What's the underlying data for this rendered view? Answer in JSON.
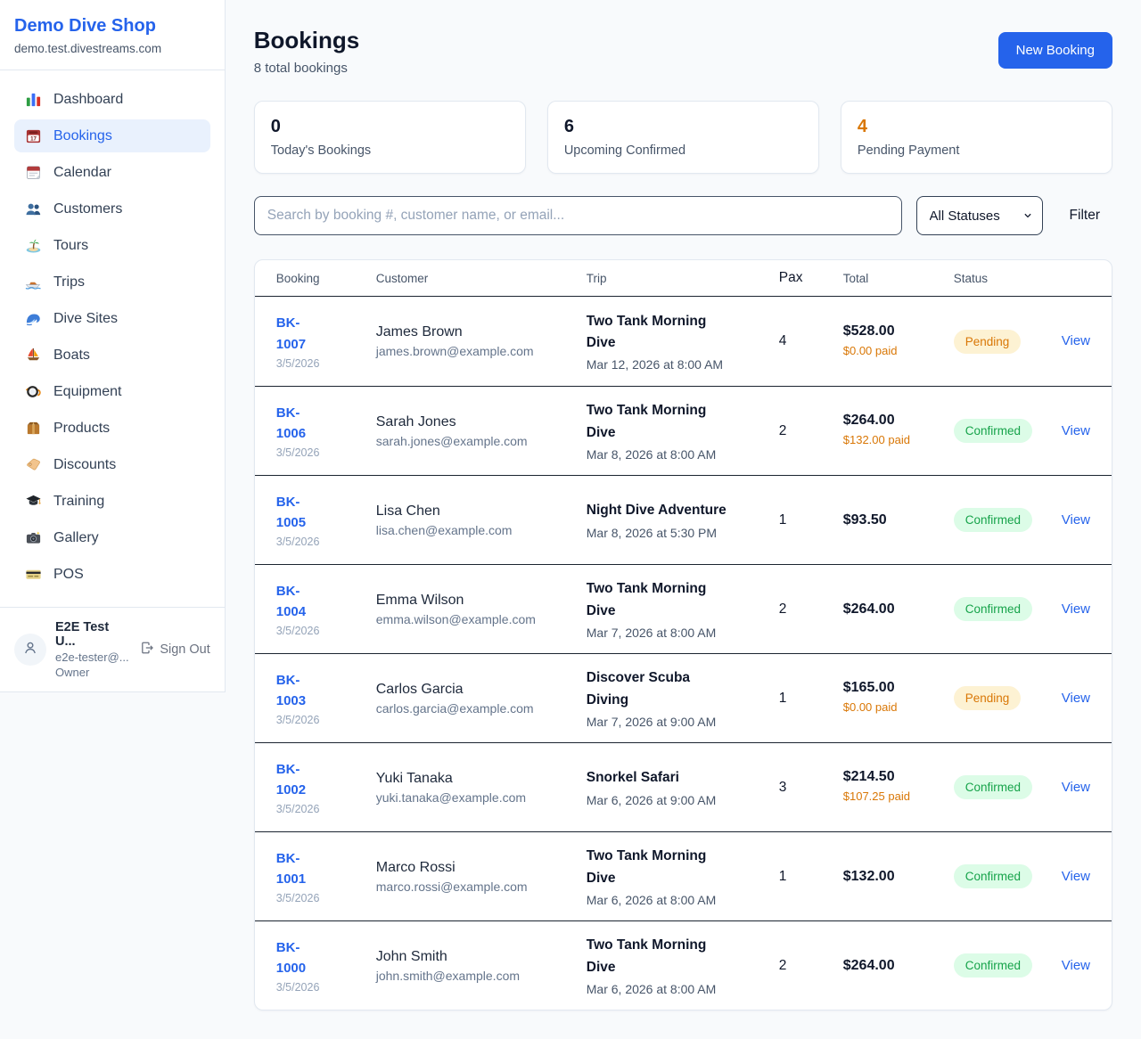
{
  "brand": {
    "name": "Demo Dive Shop",
    "domain": "demo.test.divestreams.com"
  },
  "sidebar": {
    "items": [
      {
        "icon": "bar-chart-icon",
        "label": "Dashboard",
        "state": ""
      },
      {
        "icon": "bookings-calendar-icon",
        "label": "Bookings",
        "state": "active"
      },
      {
        "icon": "calendar-icon",
        "label": "Calendar",
        "state": ""
      },
      {
        "icon": "customers-icon",
        "label": "Customers",
        "state": ""
      },
      {
        "icon": "island-icon",
        "label": "Tours",
        "state": ""
      },
      {
        "icon": "speedboat-icon",
        "label": "Trips",
        "state": ""
      },
      {
        "icon": "wave-icon",
        "label": "Dive Sites",
        "state": ""
      },
      {
        "icon": "sailboat-icon",
        "label": "Boats",
        "state": ""
      },
      {
        "icon": "diving-mask-icon",
        "label": "Equipment",
        "state": ""
      },
      {
        "icon": "package-icon",
        "label": "Products",
        "state": ""
      },
      {
        "icon": "label-tag-icon",
        "label": "Discounts",
        "state": ""
      },
      {
        "icon": "graduation-cap-icon",
        "label": "Training",
        "state": ""
      },
      {
        "icon": "camera-icon",
        "label": "Gallery",
        "state": ""
      },
      {
        "icon": "credit-card-icon",
        "label": "POS",
        "state": ""
      }
    ]
  },
  "user": {
    "name": "E2E Test U...",
    "email": "e2e-tester@...",
    "role": "Owner",
    "signout_label": "Sign Out"
  },
  "header": {
    "title": "Bookings",
    "subtitle": "8 total bookings",
    "new_booking_label": "New Booking"
  },
  "stats": [
    {
      "value": "0",
      "label": "Today's Bookings",
      "accent": ""
    },
    {
      "value": "6",
      "label": "Upcoming Confirmed",
      "accent": ""
    },
    {
      "value": "4",
      "label": "Pending Payment",
      "accent": "orange"
    }
  ],
  "filters": {
    "search_placeholder": "Search by booking #, customer name, or email...",
    "status_select": "All Statuses",
    "filter_label": "Filter"
  },
  "table": {
    "headers": [
      "Booking",
      "Customer",
      "Trip",
      "Pax",
      "Total",
      "Status"
    ],
    "view_label": "View",
    "rows": [
      {
        "id": "BK-1007",
        "date": "3/5/2026",
        "customer": "James Brown",
        "email": "james.brown@example.com",
        "trip": "Two Tank Morning Dive",
        "trip_date": "Mar 12, 2026 at 8:00 AM",
        "pax": "4",
        "total": "$528.00",
        "paid": "$0.00 paid",
        "status": "Pending"
      },
      {
        "id": "BK-1006",
        "date": "3/5/2026",
        "customer": "Sarah Jones",
        "email": "sarah.jones@example.com",
        "trip": "Two Tank Morning Dive",
        "trip_date": "Mar 8, 2026 at 8:00 AM",
        "pax": "2",
        "total": "$264.00",
        "paid": "$132.00 paid",
        "status": "Confirmed"
      },
      {
        "id": "BK-1005",
        "date": "3/5/2026",
        "customer": "Lisa Chen",
        "email": "lisa.chen@example.com",
        "trip": "Night Dive Adventure",
        "trip_date": "Mar 8, 2026 at 5:30 PM",
        "pax": "1",
        "total": "$93.50",
        "paid": null,
        "status": "Confirmed"
      },
      {
        "id": "BK-1004",
        "date": "3/5/2026",
        "customer": "Emma Wilson",
        "email": "emma.wilson@example.com",
        "trip": "Two Tank Morning Dive",
        "trip_date": "Mar 7, 2026 at 8:00 AM",
        "pax": "2",
        "total": "$264.00",
        "paid": null,
        "status": "Confirmed"
      },
      {
        "id": "BK-1003",
        "date": "3/5/2026",
        "customer": "Carlos Garcia",
        "email": "carlos.garcia@example.com",
        "trip": "Discover Scuba Diving",
        "trip_date": "Mar 7, 2026 at 9:00 AM",
        "pax": "1",
        "total": "$165.00",
        "paid": "$0.00 paid",
        "status": "Pending"
      },
      {
        "id": "BK-1002",
        "date": "3/5/2026",
        "customer": "Yuki Tanaka",
        "email": "yuki.tanaka@example.com",
        "trip": "Snorkel Safari",
        "trip_date": "Mar 6, 2026 at 9:00 AM",
        "pax": "3",
        "total": "$214.50",
        "paid": "$107.25 paid",
        "status": "Confirmed"
      },
      {
        "id": "BK-1001",
        "date": "3/5/2026",
        "customer": "Marco Rossi",
        "email": "marco.rossi@example.com",
        "trip": "Two Tank Morning Dive",
        "trip_date": "Mar 6, 2026 at 8:00 AM",
        "pax": "1",
        "total": "$132.00",
        "paid": null,
        "status": "Confirmed"
      },
      {
        "id": "BK-1000",
        "date": "3/5/2026",
        "customer": "John Smith",
        "email": "john.smith@example.com",
        "trip": "Two Tank Morning Dive",
        "trip_date": "Mar 6, 2026 at 8:00 AM",
        "pax": "2",
        "total": "$264.00",
        "paid": null,
        "status": "Confirmed"
      }
    ]
  },
  "colors": {
    "accent_blue": "#2563eb",
    "pending_text": "#d97706",
    "pending_bg": "#fdf2d3",
    "confirmed_text": "#16a34a",
    "confirmed_bg": "#dcfce7"
  }
}
